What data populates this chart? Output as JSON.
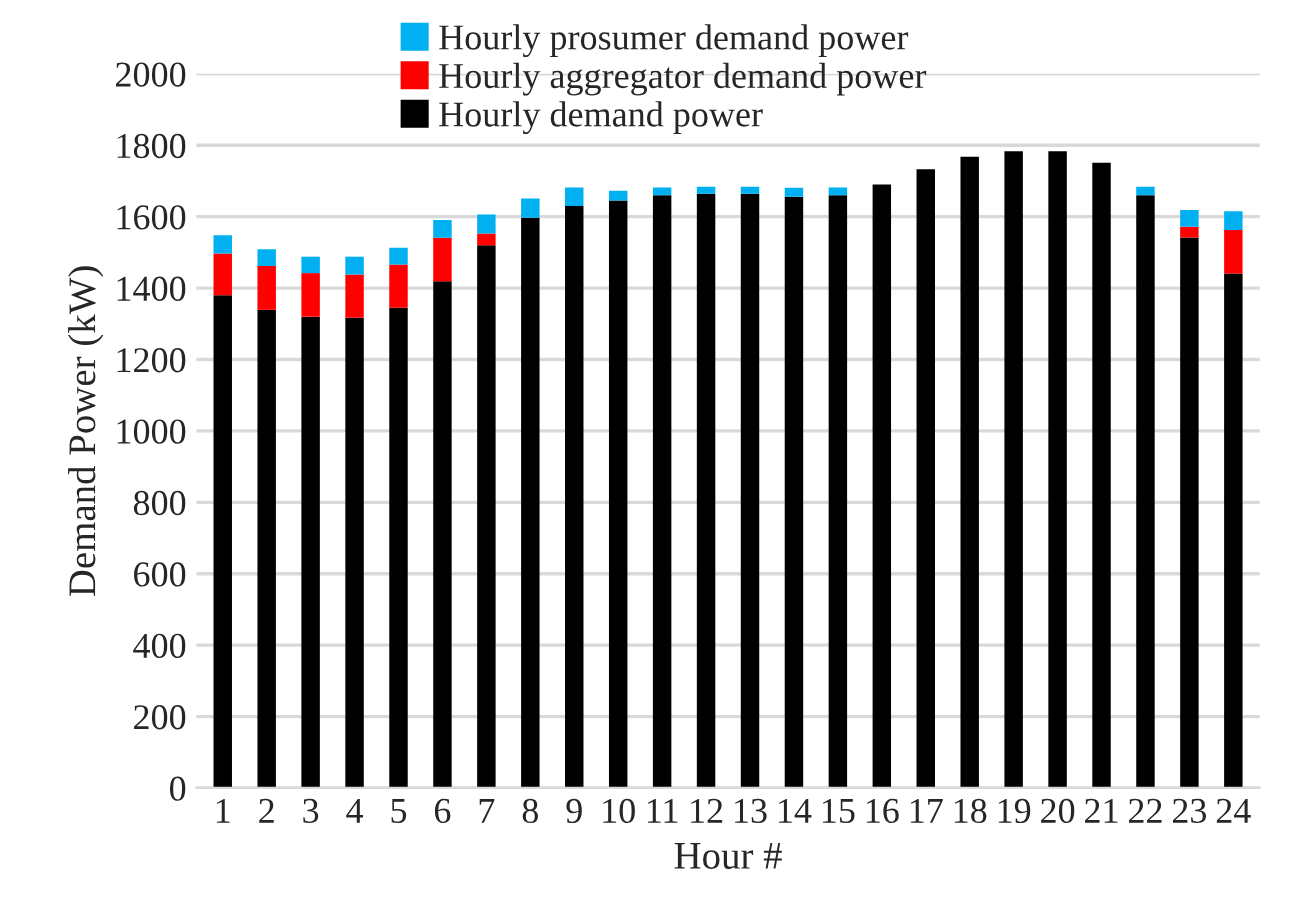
{
  "chart_data": {
    "type": "bar",
    "stacked": true,
    "xlabel": "Hour #",
    "ylabel": "Demand Power (kW)",
    "categories": [
      "1",
      "2",
      "3",
      "4",
      "5",
      "6",
      "7",
      "8",
      "9",
      "10",
      "11",
      "12",
      "13",
      "14",
      "15",
      "16",
      "17",
      "18",
      "19",
      "20",
      "21",
      "22",
      "23",
      "24"
    ],
    "series": [
      {
        "name": "Hourly demand power",
        "color": "#000000",
        "values": [
          1380,
          1339,
          1320,
          1317,
          1345,
          1419,
          1520,
          1597,
          1630,
          1645,
          1660,
          1664,
          1664,
          1656,
          1660,
          1690,
          1733,
          1768,
          1783,
          1783,
          1751,
          1660,
          1542,
          1441
        ]
      },
      {
        "name": "Hourly aggregator demand power",
        "color": "#ff0000",
        "values": [
          117,
          123,
          122,
          121,
          121,
          122,
          33,
          0,
          0,
          0,
          0,
          0,
          0,
          0,
          0,
          0,
          0,
          0,
          0,
          0,
          0,
          0,
          30,
          122
        ]
      },
      {
        "name": "Hourly prosumer demand power",
        "color": "#00b0f0",
        "values": [
          51,
          47,
          46,
          50,
          47,
          50,
          53,
          54,
          52,
          28,
          22,
          20,
          20,
          25,
          22,
          0,
          0,
          0,
          0,
          0,
          0,
          24,
          47,
          52
        ]
      }
    ],
    "ylim": [
      0,
      2000
    ],
    "yticks": [
      0,
      200,
      400,
      600,
      800,
      1000,
      1200,
      1400,
      1600,
      1800,
      2000
    ],
    "grid": "y",
    "legend": "top"
  }
}
